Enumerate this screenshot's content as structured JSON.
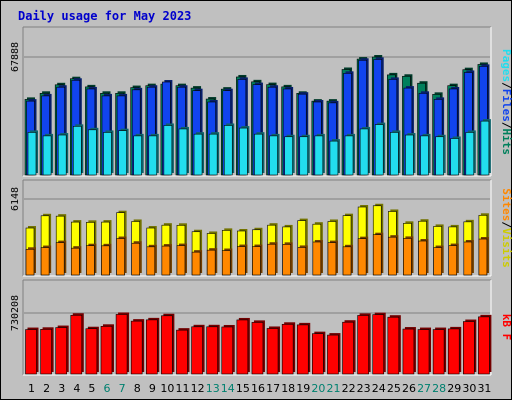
{
  "chart_data": {
    "type": "bar",
    "title": "Daily usage for May 2023",
    "categories": [
      "1",
      "2",
      "3",
      "4",
      "5",
      "6",
      "7",
      "8",
      "9",
      "10",
      "11",
      "12",
      "13",
      "14",
      "15",
      "16",
      "17",
      "18",
      "19",
      "20",
      "21",
      "22",
      "23",
      "24",
      "25",
      "26",
      "27",
      "28",
      "29",
      "30",
      "31"
    ],
    "weekend_days": [
      "6",
      "7",
      "13",
      "14",
      "20",
      "21",
      "27",
      "28"
    ],
    "panels": [
      {
        "id": "top",
        "ylabel_max": "67888",
        "ymax": 67888,
        "series": [
          {
            "name": "Hits",
            "color": "#00805c",
            "values": [
              43500,
              47000,
              51900,
              55400,
              50700,
              47000,
              47000,
              50300,
              51400,
              52300,
              51400,
              50000,
              43700,
              49400,
              56400,
              53600,
              52000,
              50700,
              47000,
              42500,
              42500,
              60700,
              66700,
              67888,
              57600,
              56800,
              52800,
              46400,
              51400,
              60600,
              63600
            ]
          },
          {
            "name": "Files",
            "color": "#1144ee",
            "values": [
              42500,
              45500,
              50500,
              54500,
              49500,
              45500,
              45500,
              49000,
              50500,
              53500,
              50500,
              48500,
              42000,
              48500,
              55000,
              52000,
              50500,
              49500,
              46500,
              42000,
              41500,
              58500,
              66000,
              66500,
              55000,
              50000,
              47000,
              43500,
              49500,
              59000,
              62500
            ]
          },
          {
            "name": "Pages",
            "color": "#22ddee",
            "values": [
              24500,
              22500,
              23000,
              28000,
              26000,
              24500,
              25500,
              22500,
              22500,
              28500,
              26500,
              23500,
              23500,
              28500,
              27000,
              23500,
              22500,
              22000,
              22000,
              22500,
              19500,
              22500,
              26500,
              29000,
              24500,
              23000,
              22500,
              22000,
              21000,
              24500,
              31000
            ]
          }
        ],
        "legend": [
          "Pages",
          "Files",
          "Hits"
        ]
      },
      {
        "id": "middle",
        "ylabel_max": "6148",
        "ymax": 6148,
        "series": [
          {
            "name": "Visits",
            "color": "#ffff00",
            "values": [
              3800,
              4790,
              4760,
              4280,
              4260,
              4280,
              5040,
              4330,
              3800,
              4030,
              4020,
              3500,
              3360,
              3610,
              3560,
              3660,
              4030,
              3890,
              4400,
              4110,
              4330,
              4800,
              5500,
              5600,
              5140,
              4180,
              4350,
              3930,
              3890,
              4300,
              4830
            ]
          },
          {
            "name": "Sites",
            "color": "#ff8800",
            "values": [
              2080,
              2220,
              2620,
              2170,
              2370,
              2360,
              2950,
              2570,
              2280,
              2340,
              2380,
              1850,
              2010,
              1980,
              2300,
              2300,
              2490,
              2480,
              2230,
              2670,
              2620,
              2280,
              2940,
              3260,
              3060,
              2960,
              2750,
              2220,
              2380,
              2670,
              2910
            ]
          }
        ],
        "legend": [
          "Sites",
          "Visits"
        ]
      },
      {
        "id": "bottom",
        "ylabel_max": "730208",
        "ymax": 730208,
        "series": [
          {
            "name": "kB F",
            "color": "#ff0000",
            "values": [
              532000,
              535000,
              556000,
              703000,
              542000,
              571000,
              713000,
              633000,
              648000,
              697000,
              525000,
              565000,
              565000,
              563000,
              647000,
              618000,
              545000,
              595000,
              588000,
              483000,
              466000,
              620000,
              701000,
              711000,
              680000,
              538000,
              532000,
              532000,
              540000,
              628000,
              684000
            ]
          }
        ],
        "legend": [
          "kB F"
        ]
      }
    ]
  }
}
